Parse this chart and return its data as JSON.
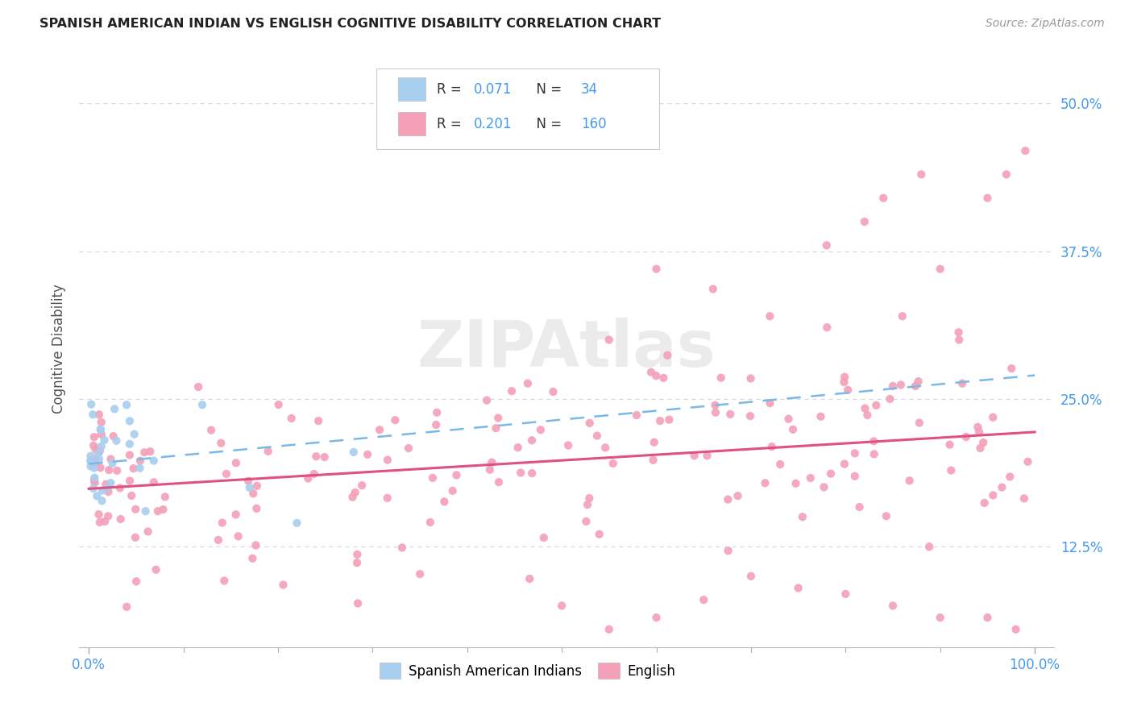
{
  "title": "SPANISH AMERICAN INDIAN VS ENGLISH COGNITIVE DISABILITY CORRELATION CHART",
  "source": "Source: ZipAtlas.com",
  "ylabel": "Cognitive Disability",
  "ytick_labels": [
    "12.5%",
    "25.0%",
    "37.5%",
    "50.0%"
  ],
  "ytick_values": [
    0.125,
    0.25,
    0.375,
    0.5
  ],
  "xlim": [
    -0.01,
    1.02
  ],
  "ylim": [
    0.04,
    0.545
  ],
  "legend_line1": "R = 0.071   N =   34",
  "legend_line2": "R = 0.201   N = 160",
  "color_blue_scatter": "#a8cef0",
  "color_pink_scatter": "#f4a0b8",
  "color_blue_line": "#7ab8e8",
  "color_pink_line": "#e05080",
  "color_blue_text": "#4499ee",
  "color_grid": "#d8d8d8",
  "color_axis": "#cccccc",
  "watermark": "ZIPAtlas",
  "blue_trend": [
    0.0,
    0.195,
    1.0,
    0.27
  ],
  "pink_trend": [
    0.0,
    0.174,
    1.0,
    0.222
  ]
}
